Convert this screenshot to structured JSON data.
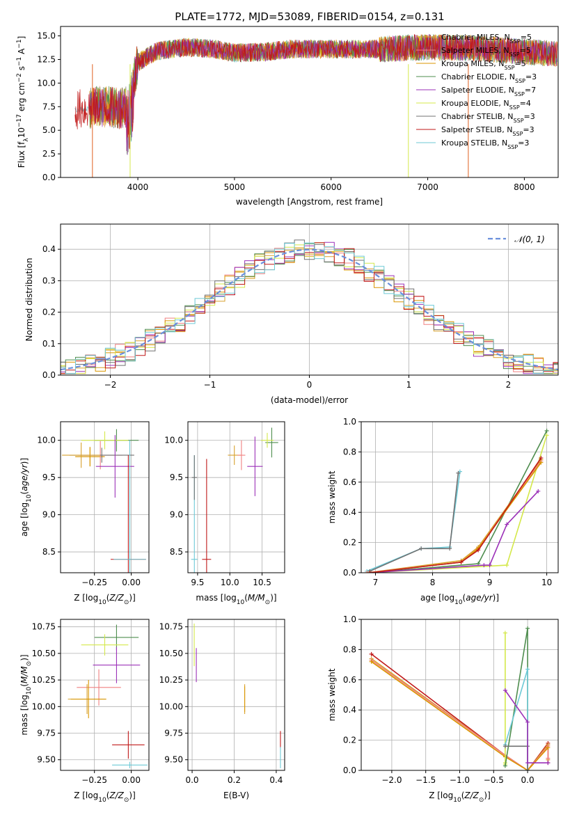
{
  "figure": {
    "title": "PLATE=1772, MJD=53089, FIBERID=0154, z=0.131"
  },
  "models": [
    {
      "name": "Chabrier MILES",
      "nssp": "5",
      "color": "#d8a12c"
    },
    {
      "name": "Salpeter MILES",
      "nssp": "5",
      "color": "#f08080"
    },
    {
      "name": "Kroupa MILES",
      "nssp": "5",
      "color": "#d99600"
    },
    {
      "name": "Chabrier ELODIE",
      "nssp": "3",
      "color": "#4e8d4e"
    },
    {
      "name": "Salpeter ELODIE",
      "nssp": "7",
      "color": "#9b30b8"
    },
    {
      "name": "Kroupa ELODIE",
      "nssp": "4",
      "color": "#d4e84a"
    },
    {
      "name": "Chabrier STELIB",
      "nssp": "3",
      "color": "#707070"
    },
    {
      "name": "Salpeter STELIB",
      "nssp": "3",
      "color": "#c01818"
    },
    {
      "name": "Kroupa STELIB",
      "nssp": "3",
      "color": "#6cc9d6"
    }
  ],
  "chart_data": [
    {
      "id": "spectrum",
      "type": "line",
      "title": "PLATE=1772, MJD=53089, FIBERID=0154, z=0.131",
      "xlabel": "wavelength [Angstrom, rest frame]",
      "ylabel": "Flux [f_λ 10^-17 erg cm^-2 s^-1 A^-1]",
      "xlim": [
        3200,
        8350
      ],
      "ylim": [
        0,
        16
      ],
      "xticks": [
        "4000",
        "5000",
        "6000",
        "7000",
        "8000"
      ],
      "yticks": [
        "0.0",
        "2.5",
        "5.0",
        "7.5",
        "10.0",
        "12.5",
        "15.0"
      ],
      "grid": false,
      "legend": "top-right",
      "anchor_points": {
        "x": [
          3350,
          3500,
          3600,
          3700,
          3800,
          3900,
          4000,
          4200,
          4500,
          4800,
          5000,
          5300,
          5600,
          6000,
          6500,
          7000,
          7500,
          8000,
          8350
        ],
        "y": [
          7.2,
          7.3,
          7.5,
          7.5,
          7.3,
          7.5,
          12.2,
          13.4,
          13.8,
          13.6,
          13.2,
          13.3,
          13.6,
          13.6,
          13.6,
          13.8,
          13.7,
          13.3,
          13.1
        ]
      }
    },
    {
      "id": "residuals",
      "type": "line",
      "xlabel": "(data-model)/error",
      "ylabel": "Normed distribution",
      "xlim": [
        -2.5,
        2.5
      ],
      "ylim": [
        0,
        0.48
      ],
      "xticks": [
        "−2",
        "−1",
        "0",
        "1",
        "2"
      ],
      "yticks": [
        "0.0",
        "0.1",
        "0.2",
        "0.3",
        "0.4"
      ],
      "grid": true,
      "legend": "top-right",
      "series": [
        {
          "name": "𝒩(0, 1)",
          "style": "dashed",
          "color": "#6a8fdc",
          "function": "normal_pdf_mean0_sd1"
        }
      ]
    },
    {
      "id": "age_vs_Z",
      "type": "scatter",
      "xlabel": "Z [log10(Z/Z⊙)]",
      "ylabel": "age [log10(age/yr)]",
      "xlim": [
        -0.48,
        0.12
      ],
      "ylim": [
        8.22,
        10.25
      ],
      "xticks": [
        "−0.25",
        "0.00"
      ],
      "yticks": [
        "8.5",
        "9.0",
        "9.5",
        "10.0"
      ],
      "grid": true,
      "points": [
        {
          "model": 3,
          "x": -0.1,
          "y": 10.0,
          "xerr": 0.15,
          "yerr": 0.15
        },
        {
          "model": 5,
          "x": -0.18,
          "y": 10.0,
          "xerr": 0.16,
          "yerr": 0.12
        },
        {
          "model": 0,
          "x": -0.28,
          "y": 9.78,
          "xerr": 0.1,
          "yerr": 0.13
        },
        {
          "model": 2,
          "x": -0.28,
          "y": 9.78,
          "xerr": 0.1,
          "yerr": 0.13
        },
        {
          "model": 1,
          "x": -0.21,
          "y": 9.8,
          "xerr": 0.15,
          "yerr": 0.19
        },
        {
          "model": 6,
          "x": -0.2,
          "y": 9.8,
          "xerr": 0.22,
          "yerr": 0.1
        },
        {
          "model": 0,
          "x": -0.34,
          "y": 9.8,
          "xerr": 0.13,
          "yerr": 0.17
        },
        {
          "model": 4,
          "x": -0.11,
          "y": 9.65,
          "xerr": 0.13,
          "yerr": 0.42
        },
        {
          "model": 7,
          "x": -0.02,
          "y": 8.4,
          "xerr": 0.12,
          "yerr": 1.4
        },
        {
          "model": 8,
          "x": -0.01,
          "y": 8.4,
          "xerr": 0.11,
          "yerr": 1.6
        }
      ]
    },
    {
      "id": "age_vs_mass",
      "type": "scatter",
      "xlabel": "mass [log10(M/M⊙)]",
      "ylabel": "",
      "xlim": [
        9.35,
        10.85
      ],
      "ylim": [
        8.22,
        10.25
      ],
      "xticks": [
        "9.5",
        "10.0",
        "10.5"
      ],
      "yticks": [
        "8.5",
        "9.0",
        "9.5",
        "10.0"
      ],
      "grid": true,
      "points": [
        {
          "model": 3,
          "x": 10.65,
          "y": 9.97,
          "xerr": 0.1,
          "yerr": 0.2
        },
        {
          "model": 5,
          "x": 10.58,
          "y": 10.0,
          "xerr": 0.1,
          "yerr": 0.1
        },
        {
          "model": 0,
          "x": 10.07,
          "y": 9.8,
          "xerr": 0.1,
          "yerr": 0.13
        },
        {
          "model": 1,
          "x": 10.18,
          "y": 9.8,
          "xerr": 0.06,
          "yerr": 0.2
        },
        {
          "model": 4,
          "x": 10.39,
          "y": 9.65,
          "xerr": 0.12,
          "yerr": 0.4
        },
        {
          "model": 7,
          "x": 9.64,
          "y": 8.4,
          "xerr": 0.07,
          "yerr": 1.35
        },
        {
          "model": 8,
          "x": 9.45,
          "y": 8.4,
          "xerr": 0.05,
          "yerr": 1.4
        },
        {
          "model": 6,
          "x": 9.45,
          "y": 9.5,
          "xerr": 0.04,
          "yerr": 0.3
        }
      ]
    },
    {
      "id": "massweight_vs_age",
      "type": "line",
      "xlabel": "age [log10(age/yr)]",
      "ylabel": "mass weight",
      "xlim": [
        6.75,
        10.2
      ],
      "ylim": [
        0,
        1
      ],
      "xticks": [
        "7",
        "8",
        "9",
        "10"
      ],
      "yticks": [
        "0.0",
        "0.2",
        "0.4",
        "0.6",
        "0.8",
        "1.0"
      ],
      "grid": true,
      "series": [
        {
          "model": 8,
          "x": [
            6.85,
            7.8,
            8.3,
            8.48
          ],
          "y": [
            0.01,
            0.16,
            0.17,
            0.67
          ]
        },
        {
          "model": 6,
          "x": [
            6.9,
            7.8,
            8.3,
            8.45
          ],
          "y": [
            0.01,
            0.16,
            0.16,
            0.66
          ]
        },
        {
          "model": 3,
          "x": [
            6.9,
            8.8,
            10.0
          ],
          "y": [
            0.0,
            0.06,
            0.94
          ]
        },
        {
          "model": 5,
          "x": [
            6.9,
            9.3,
            10.0
          ],
          "y": [
            0.0,
            0.05,
            0.91
          ]
        },
        {
          "model": 4,
          "x": [
            6.9,
            8.9,
            9.0,
            9.3,
            9.85
          ],
          "y": [
            0.0,
            0.05,
            0.05,
            0.32,
            0.54
          ]
        },
        {
          "model": 0,
          "x": [
            6.85,
            8.5,
            8.8,
            9.9
          ],
          "y": [
            0.0,
            0.08,
            0.17,
            0.75
          ]
        },
        {
          "model": 1,
          "x": [
            6.85,
            8.5,
            8.8,
            9.9
          ],
          "y": [
            0.0,
            0.07,
            0.16,
            0.74
          ]
        },
        {
          "model": 2,
          "x": [
            6.9,
            8.5,
            8.8,
            9.9
          ],
          "y": [
            0.0,
            0.07,
            0.16,
            0.73
          ]
        },
        {
          "model": 7,
          "x": [
            6.9,
            8.5,
            8.8,
            9.9
          ],
          "y": [
            0.0,
            0.07,
            0.15,
            0.76
          ]
        }
      ]
    },
    {
      "id": "mass_vs_Z",
      "type": "scatter",
      "xlabel": "Z [log10(Z/Z⊙)]",
      "ylabel": "mass [log10(M/M⊙)]",
      "xlim": [
        -0.48,
        0.12
      ],
      "ylim": [
        9.4,
        10.82
      ],
      "xticks": [
        "−0.25",
        "0.00"
      ],
      "yticks": [
        "9.50",
        "9.75",
        "10.00",
        "10.25",
        "10.50",
        "10.75"
      ],
      "grid": true,
      "points": [
        {
          "model": 3,
          "x": -0.1,
          "y": 10.65,
          "xerr": 0.15,
          "yerr": 0.12
        },
        {
          "model": 5,
          "x": -0.18,
          "y": 10.58,
          "xerr": 0.16,
          "yerr": 0.1
        },
        {
          "model": 4,
          "x": -0.1,
          "y": 10.39,
          "xerr": 0.16,
          "yerr": 0.17
        },
        {
          "model": 1,
          "x": -0.22,
          "y": 10.18,
          "xerr": 0.15,
          "yerr": 0.17
        },
        {
          "model": 0,
          "x": -0.3,
          "y": 10.07,
          "xerr": 0.13,
          "yerr": 0.14
        },
        {
          "model": 2,
          "x": -0.29,
          "y": 10.07,
          "xerr": 0.12,
          "yerr": 0.18
        },
        {
          "model": 7,
          "x": -0.02,
          "y": 9.64,
          "xerr": 0.11,
          "yerr": 0.13
        },
        {
          "model": 8,
          "x": -0.01,
          "y": 9.45,
          "xerr": 0.12,
          "yerr": 0.03
        }
      ]
    },
    {
      "id": "mass_vs_ebv",
      "type": "scatter",
      "xlabel": "E(B-V)",
      "ylabel": "",
      "xlim": [
        -0.02,
        0.44
      ],
      "ylim": [
        9.4,
        10.82
      ],
      "xticks": [
        "0.0",
        "0.2",
        "0.4"
      ],
      "yticks": [
        "9.50",
        "9.75",
        "10.00",
        "10.25",
        "10.50",
        "10.75"
      ],
      "grid": true,
      "points": [
        {
          "model": 5,
          "x": 0.01,
          "y": 10.58,
          "xerr": 0.0,
          "yerr": 0.2
        },
        {
          "model": 4,
          "x": 0.02,
          "y": 10.39,
          "xerr": 0.0,
          "yerr": 0.16
        },
        {
          "model": 0,
          "x": 0.25,
          "y": 10.07,
          "xerr": 0.0,
          "yerr": 0.14
        },
        {
          "model": 2,
          "x": 0.25,
          "y": 10.07,
          "xerr": 0.0,
          "yerr": 0.12
        },
        {
          "model": 7,
          "x": 0.42,
          "y": 9.69,
          "xerr": 0.0,
          "yerr": 0.08
        },
        {
          "model": 8,
          "x": 0.42,
          "y": 9.52,
          "xerr": 0.0,
          "yerr": 0.1
        }
      ]
    },
    {
      "id": "massweight_vs_Z",
      "type": "line",
      "xlabel": "Z [log10(Z/Z⊙)]",
      "ylabel": "mass weight",
      "xlim": [
        -2.45,
        0.45
      ],
      "ylim": [
        0,
        1
      ],
      "xticks": [
        "−2.0",
        "−1.5",
        "−1.0",
        "−0.5",
        "0.0"
      ],
      "yticks": [
        "0.0",
        "0.2",
        "0.4",
        "0.6",
        "0.8",
        "1.0"
      ],
      "grid": true,
      "series": [
        {
          "model": 7,
          "x": [
            -2.3,
            -0.33,
            0.0,
            0.3,
            0.3
          ],
          "y": [
            0.77,
            0.1,
            0.0,
            0.18,
            0.05
          ]
        },
        {
          "model": 0,
          "x": [
            -2.3,
            -0.33,
            0.0,
            0.3,
            0.3
          ],
          "y": [
            0.74,
            0.1,
            0.0,
            0.17,
            0.07
          ]
        },
        {
          "model": 1,
          "x": [
            -2.3,
            -0.33,
            0.0,
            0.3,
            0.3
          ],
          "y": [
            0.73,
            0.1,
            0.0,
            0.16,
            0.08
          ]
        },
        {
          "model": 2,
          "x": [
            -2.3,
            -0.33,
            0.0,
            0.3
          ],
          "y": [
            0.72,
            0.09,
            0.0,
            0.15
          ]
        },
        {
          "model": 5,
          "x": [
            -0.33,
            -0.33,
            -0.33
          ],
          "y": [
            0.04,
            0.05,
            0.91
          ]
        },
        {
          "model": 3,
          "x": [
            -0.33,
            0.0,
            0.0
          ],
          "y": [
            0.03,
            0.94,
            0.0
          ]
        },
        {
          "model": 8,
          "x": [
            -0.33,
            0.0,
            0.0
          ],
          "y": [
            0.17,
            0.67,
            0.0
          ]
        },
        {
          "model": 6,
          "x": [
            -0.33,
            0.0,
            0.0
          ],
          "y": [
            0.16,
            0.16,
            0.0
          ]
        },
        {
          "model": 4,
          "x": [
            -0.33,
            0.0,
            0.0,
            0.3
          ],
          "y": [
            0.53,
            0.32,
            0.05,
            0.05
          ]
        }
      ]
    }
  ]
}
